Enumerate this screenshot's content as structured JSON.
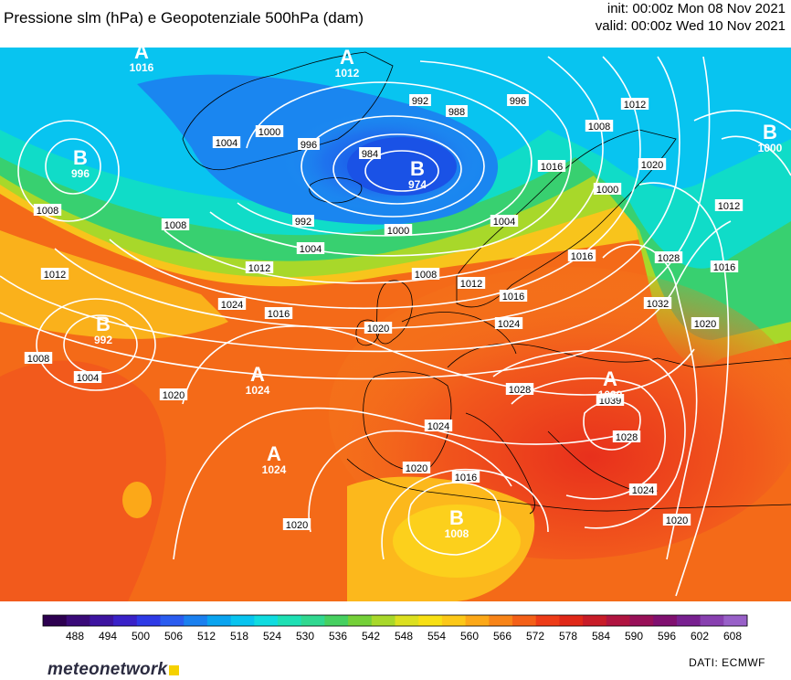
{
  "header": {
    "title": "Pressione slm (hPa) e Geopotenziale 500hPa (dam)",
    "init": "init: 00:00z Mon 08 Nov 2021",
    "valid": "valid: 00:00z Wed 10 Nov 2021"
  },
  "centers": [
    {
      "id": "b-greenland-west",
      "letter": "B",
      "value": "996"
    },
    {
      "id": "a-baffin",
      "letter": "A",
      "value": "1016"
    },
    {
      "id": "a-greenland",
      "letter": "A",
      "value": "1012"
    },
    {
      "id": "b-iceland",
      "letter": "B",
      "value": "974"
    },
    {
      "id": "b-russia",
      "letter": "B",
      "value": "1000"
    },
    {
      "id": "b-atlantic",
      "letter": "B",
      "value": "992"
    },
    {
      "id": "a-azores-north",
      "letter": "A",
      "value": "1024"
    },
    {
      "id": "a-azores-south",
      "letter": "A",
      "value": "1024"
    },
    {
      "id": "a-balkans",
      "letter": "A",
      "value": "1039"
    },
    {
      "id": "b-north-africa",
      "letter": "B",
      "value": "1008"
    }
  ],
  "isobar_labels": [
    "1004",
    "1000",
    "996",
    "984",
    "992",
    "988",
    "996",
    "1008",
    "1012",
    "1008",
    "1012",
    "1008",
    "992",
    "1000",
    "1004",
    "1012",
    "1016",
    "1000",
    "1020",
    "1016",
    "1004",
    "1008",
    "1012",
    "1016",
    "1024",
    "1020",
    "1028",
    "1032",
    "1020",
    "1016",
    "1024",
    "1012",
    "1004",
    "1008",
    "1020",
    "1020",
    "1024",
    "1028",
    "1039",
    "1028",
    "1020",
    "1016",
    "1024",
    "1020",
    "1016"
  ],
  "colorbar": {
    "unit": "dam",
    "ticks": [
      "488",
      "494",
      "500",
      "506",
      "512",
      "518",
      "524",
      "530",
      "536",
      "542",
      "548",
      "554",
      "560",
      "566",
      "572",
      "578",
      "584",
      "590",
      "596",
      "602",
      "608"
    ],
    "colors": [
      "#2d0050",
      "#3a0a78",
      "#3d14a0",
      "#3a22c8",
      "#2e3ae6",
      "#2a5cf0",
      "#1a80f0",
      "#0aa4f0",
      "#08c4f0",
      "#10dce0",
      "#1ee0b4",
      "#30d890",
      "#46d060",
      "#74d038",
      "#a8d82a",
      "#dce020",
      "#f8e014",
      "#fcc818",
      "#fca818",
      "#f88418",
      "#f46018",
      "#ee3c18",
      "#e02818",
      "#c81c28",
      "#b01440",
      "#981058",
      "#801070",
      "#782090",
      "#8840b0",
      "#9860c8"
    ]
  },
  "footer": {
    "brand": "meteonetwork",
    "source": "DATI:  ECMWF"
  }
}
